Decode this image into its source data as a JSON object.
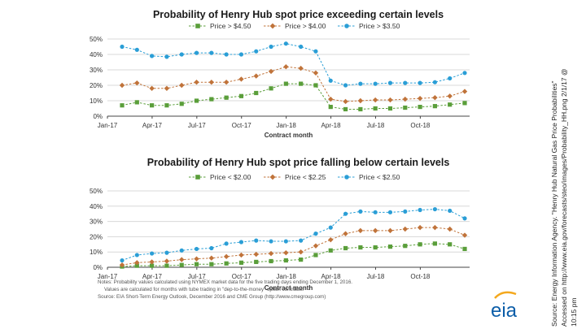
{
  "chart_data": [
    {
      "type": "line",
      "title": "Probability of Henry Hub spot price exceeding certain levels",
      "xlabel": "Contract month",
      "ylabel": "",
      "ylim": [
        0,
        50
      ],
      "yticks": [
        "0%",
        "10%",
        "20%",
        "30%",
        "40%",
        "50%"
      ],
      "xticks": [
        "Jan-17",
        "Apr-17",
        "Jul-17",
        "Oct-17",
        "Jan-18",
        "Apr-18",
        "Jul-18",
        "Oct-18"
      ],
      "legend_position": "top",
      "grid": true,
      "x": [
        "Jan-17",
        "Feb-17",
        "Mar-17",
        "Apr-17",
        "May-17",
        "Jun-17",
        "Jul-17",
        "Aug-17",
        "Sep-17",
        "Oct-17",
        "Nov-17",
        "Dec-17",
        "Jan-18",
        "Feb-18",
        "Mar-18",
        "Apr-18",
        "May-18",
        "Jun-18",
        "Jul-18",
        "Aug-18",
        "Sep-18",
        "Oct-18",
        "Nov-18",
        "Dec-18"
      ],
      "series": [
        {
          "name": "Price > $4.50",
          "color": "#5a9e3a",
          "marker": "square",
          "values": [
            7,
            9,
            7,
            7,
            8,
            10,
            11,
            12,
            13,
            15,
            18,
            21,
            21,
            20,
            6,
            4.5,
            4.5,
            5,
            5,
            5.5,
            6,
            6.5,
            7.5,
            8.5
          ]
        },
        {
          "name": "Price > $4.00",
          "color": "#c0733a",
          "marker": "diamond",
          "values": [
            20,
            21.5,
            18,
            18,
            20,
            22,
            22,
            22,
            24,
            26,
            29,
            32,
            31,
            28,
            11,
            9.5,
            10,
            10.5,
            10.5,
            11,
            11.5,
            12,
            13,
            16
          ]
        },
        {
          "name": "Price > $3.50",
          "color": "#2a9ed6",
          "marker": "circle",
          "values": [
            45,
            43,
            39,
            38.5,
            40,
            41,
            41,
            40,
            40,
            42,
            45,
            47,
            45,
            42,
            23,
            20,
            21,
            21,
            21.5,
            21.5,
            21.5,
            22,
            24.5,
            28
          ]
        }
      ]
    },
    {
      "type": "line",
      "title": "Probability of Henry Hub spot price falling below certain levels",
      "xlabel": "Contract month",
      "ylabel": "",
      "ylim": [
        0,
        50
      ],
      "yticks": [
        "0%",
        "10%",
        "20%",
        "30%",
        "40%",
        "50%"
      ],
      "xticks": [
        "Jan-17",
        "Apr-17",
        "Jul-17",
        "Oct-17",
        "Jan-18",
        "Apr-18",
        "Jul-18",
        "Oct-18"
      ],
      "legend_position": "top",
      "grid": true,
      "x": [
        "Jan-17",
        "Feb-17",
        "Mar-17",
        "Apr-17",
        "May-17",
        "Jun-17",
        "Jul-17",
        "Aug-17",
        "Sep-17",
        "Oct-17",
        "Nov-17",
        "Dec-17",
        "Jan-18",
        "Feb-18",
        "Mar-18",
        "Apr-18",
        "May-18",
        "Jun-18",
        "Jul-18",
        "Aug-18",
        "Sep-18",
        "Oct-18",
        "Nov-18",
        "Dec-18"
      ],
      "series": [
        {
          "name": "Price < $2.00",
          "color": "#5a9e3a",
          "marker": "square",
          "values": [
            0.5,
            1,
            1,
            1,
            1.5,
            2,
            2,
            2.5,
            3,
            3.5,
            4,
            4.5,
            5,
            8,
            11,
            12.5,
            13,
            13,
            13.5,
            14,
            15,
            15.5,
            15,
            12
          ]
        },
        {
          "name": "Price < $2.25",
          "color": "#c0733a",
          "marker": "diamond",
          "values": [
            1.5,
            3,
            3.5,
            4,
            5,
            5.5,
            6,
            7,
            8,
            8.5,
            9,
            9.5,
            10,
            14,
            18,
            22,
            24,
            24,
            24,
            25,
            26,
            26,
            25,
            21
          ]
        },
        {
          "name": "Price < $2.50",
          "color": "#2a9ed6",
          "marker": "circle",
          "values": [
            4.5,
            8,
            9,
            9.5,
            11,
            12,
            12.5,
            15.5,
            16.5,
            17.5,
            17,
            17,
            17.5,
            22,
            26,
            35,
            36.5,
            36,
            36,
            36.5,
            37.5,
            38,
            37,
            32
          ]
        }
      ]
    }
  ],
  "notes": {
    "line1": "Notes: Probability values calculated using NYMEX market data for the five trading days ending December 1, 2016.",
    "line2": "Values are calculated for months with tube trading in \"dep-to-the-money\" option contracts.",
    "line3": "Source: EIA Short-Term Energy Outlook, December 2016 and CME Group (http://www.cmegroup.com)"
  },
  "side_source": {
    "line1": "Source: Energy Information Agency. \"Henry Hub Natural Gas Price Probabilities\"",
    "line2": "Accessed on http://www.eia.gov/forecasts/steo/images/Probability_HH.png 2/1/17 @",
    "line3": "10:15 pm"
  },
  "logo": {
    "text": "eia"
  }
}
